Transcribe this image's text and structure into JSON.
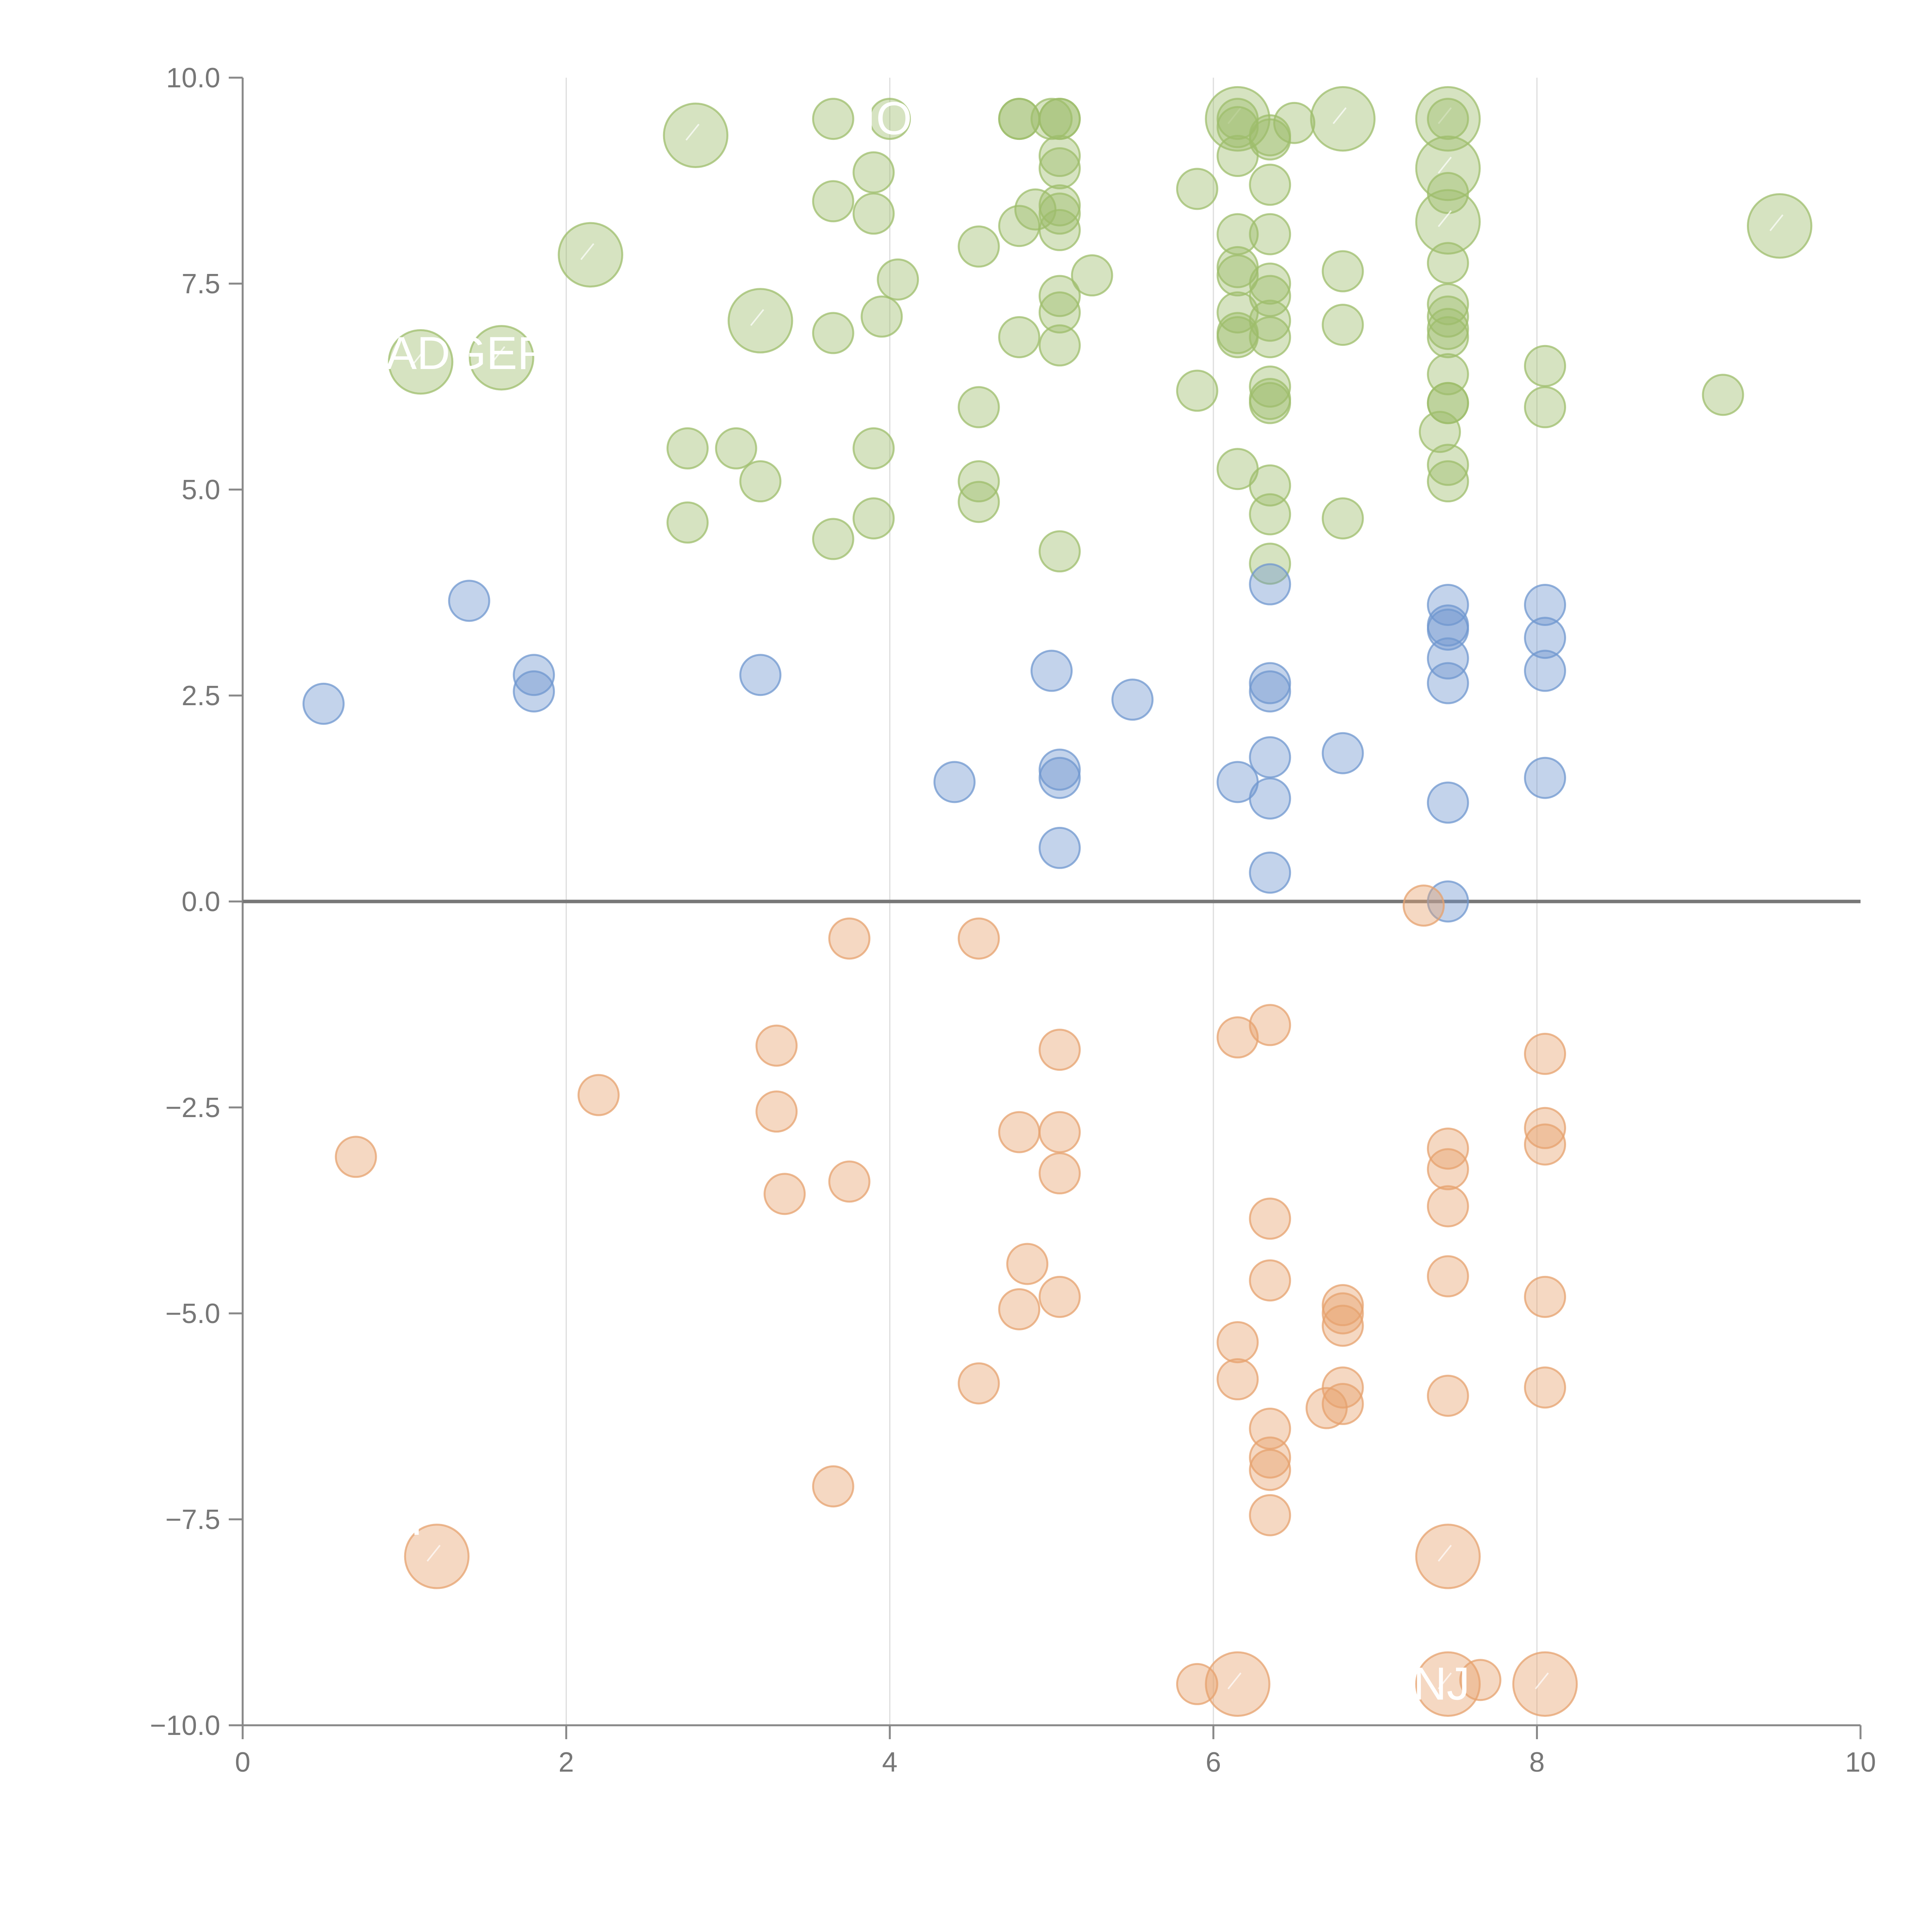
{
  "chart_data": {
    "type": "scatter",
    "title": "",
    "xlabel": "",
    "ylabel": "",
    "xlim": [
      0,
      10
    ],
    "ylim": [
      -10,
      10
    ],
    "grid": "vertical",
    "x_ticks": [
      "0",
      "2",
      "4",
      "6",
      "8",
      "10"
    ],
    "y_ticks": [
      "10.0",
      "7.5",
      "5.0",
      "2.5",
      "0.0",
      "−2.5",
      "−5.0",
      "−7.5",
      "−10.0"
    ],
    "colors": {
      "positive_high": "#9dbd6b",
      "positive_low": "#6f97cf",
      "negative": "#e6a26e",
      "axis": "#888888",
      "zero_line": "#777777",
      "grid": "#dddddd"
    },
    "labels": [
      {
        "text": "ADGER",
        "x": 1.1,
        "y": 6.65
      },
      {
        "text": "NJ",
        "x": 7.45,
        "y": -9.5
      },
      {
        "text": "IO",
        "x": 4.05,
        "y": 9.5
      },
      {
        "text": "I",
        "x": 1.25,
        "y": -7.5
      },
      {
        "text": "I",
        "x": 7.45,
        "y": -7.5
      }
    ],
    "series": [
      {
        "name": "green",
        "color": "#9dbd6b",
        "points": [
          [
            3.65,
            9.5,
            1
          ],
          [
            4.0,
            9.5,
            1
          ],
          [
            4.8,
            9.5,
            1
          ],
          [
            4.8,
            9.5,
            1
          ],
          [
            5.05,
            9.5,
            1
          ],
          [
            5.05,
            9.5,
            1
          ],
          [
            5.0,
            9.5,
            1
          ],
          [
            6.15,
            9.5,
            2.5
          ],
          [
            6.15,
            9.5,
            1
          ],
          [
            6.15,
            9.4,
            1
          ],
          [
            6.5,
            9.45,
            1
          ],
          [
            6.8,
            9.5,
            2.5
          ],
          [
            7.45,
            9.5,
            2.5
          ],
          [
            7.45,
            9.5,
            1
          ],
          [
            2.8,
            9.3,
            2.5
          ],
          [
            6.35,
            9.3,
            1
          ],
          [
            6.35,
            9.25,
            1
          ],
          [
            3.9,
            8.85,
            1
          ],
          [
            5.05,
            9.05,
            1
          ],
          [
            5.05,
            8.9,
            1
          ],
          [
            7.45,
            8.9,
            2.5
          ],
          [
            6.15,
            9.05,
            1
          ],
          [
            5.9,
            8.65,
            1
          ],
          [
            6.35,
            8.7,
            1
          ],
          [
            3.65,
            8.5,
            1
          ],
          [
            3.9,
            8.35,
            1
          ],
          [
            4.9,
            8.4,
            1
          ],
          [
            5.05,
            8.45,
            1
          ],
          [
            5.05,
            8.35,
            1
          ],
          [
            7.45,
            8.6,
            1
          ],
          [
            4.8,
            8.2,
            1
          ],
          [
            5.05,
            8.15,
            1
          ],
          [
            6.15,
            8.1,
            1
          ],
          [
            6.35,
            8.1,
            1
          ],
          [
            7.45,
            8.25,
            2.5
          ],
          [
            9.5,
            8.2,
            2.5
          ],
          [
            2.15,
            7.85,
            2.5
          ],
          [
            4.55,
            7.95,
            1
          ],
          [
            6.15,
            7.7,
            1
          ],
          [
            6.15,
            7.6,
            1
          ],
          [
            7.45,
            7.75,
            1
          ],
          [
            4.05,
            7.55,
            1
          ],
          [
            5.25,
            7.6,
            1
          ],
          [
            6.8,
            7.65,
            1
          ],
          [
            6.35,
            7.5,
            1
          ],
          [
            5.05,
            7.35,
            1
          ],
          [
            5.05,
            7.15,
            1
          ],
          [
            6.35,
            7.35,
            1
          ],
          [
            7.45,
            7.25,
            1
          ],
          [
            3.95,
            7.1,
            1
          ],
          [
            3.2,
            7.05,
            2.5
          ],
          [
            6.15,
            7.15,
            1
          ],
          [
            6.35,
            7.05,
            1
          ],
          [
            7.45,
            7.1,
            1
          ],
          [
            7.45,
            6.95,
            1
          ],
          [
            6.8,
            7.0,
            1
          ],
          [
            6.15,
            6.9,
            1
          ],
          [
            6.15,
            6.85,
            1
          ],
          [
            6.35,
            6.85,
            1
          ],
          [
            7.45,
            6.85,
            1
          ],
          [
            3.65,
            6.9,
            1
          ],
          [
            4.8,
            6.85,
            1
          ],
          [
            5.05,
            6.75,
            1
          ],
          [
            1.1,
            6.55,
            2.5
          ],
          [
            1.6,
            6.6,
            2.5
          ],
          [
            7.45,
            6.4,
            1
          ],
          [
            8.05,
            6.5,
            1
          ],
          [
            5.9,
            6.2,
            1
          ],
          [
            6.35,
            6.25,
            1
          ],
          [
            6.35,
            6.05,
            1
          ],
          [
            6.35,
            6.1,
            1
          ],
          [
            7.45,
            6.05,
            1
          ],
          [
            7.45,
            6.05,
            1
          ],
          [
            4.55,
            6.0,
            1
          ],
          [
            8.05,
            6.0,
            1
          ],
          [
            9.15,
            6.15,
            1
          ],
          [
            7.4,
            5.7,
            1
          ],
          [
            2.75,
            5.5,
            1
          ],
          [
            3.05,
            5.5,
            1
          ],
          [
            3.9,
            5.5,
            1
          ],
          [
            7.45,
            5.3,
            1
          ],
          [
            6.15,
            5.25,
            1
          ],
          [
            3.2,
            5.1,
            1
          ],
          [
            4.55,
            5.1,
            1
          ],
          [
            6.35,
            5.05,
            1
          ],
          [
            7.45,
            5.1,
            1
          ],
          [
            4.55,
            4.85,
            1
          ],
          [
            6.35,
            4.7,
            1
          ],
          [
            6.8,
            4.65,
            1
          ],
          [
            2.75,
            4.6,
            1
          ],
          [
            3.9,
            4.65,
            1
          ],
          [
            3.65,
            4.4,
            1
          ],
          [
            5.05,
            4.25,
            1
          ],
          [
            6.35,
            4.1,
            1
          ]
        ]
      },
      {
        "name": "blue",
        "color": "#6f97cf",
        "points": [
          [
            6.35,
            3.85,
            1
          ],
          [
            1.4,
            3.65,
            1
          ],
          [
            7.45,
            3.6,
            1
          ],
          [
            8.05,
            3.6,
            1
          ],
          [
            7.45,
            3.35,
            1
          ],
          [
            7.45,
            3.3,
            1
          ],
          [
            8.05,
            3.2,
            1
          ],
          [
            7.45,
            2.95,
            1
          ],
          [
            5.0,
            2.8,
            1
          ],
          [
            8.05,
            2.8,
            1
          ],
          [
            1.8,
            2.75,
            1
          ],
          [
            3.2,
            2.75,
            1
          ],
          [
            6.35,
            2.65,
            1
          ],
          [
            6.35,
            2.55,
            1
          ],
          [
            7.45,
            2.65,
            1
          ],
          [
            1.8,
            2.55,
            1
          ],
          [
            5.5,
            2.45,
            1
          ],
          [
            0.5,
            2.4,
            1
          ],
          [
            6.8,
            1.8,
            1
          ],
          [
            6.35,
            1.75,
            1
          ],
          [
            5.05,
            1.6,
            1
          ],
          [
            5.05,
            1.5,
            1
          ],
          [
            8.05,
            1.5,
            1
          ],
          [
            4.4,
            1.45,
            1
          ],
          [
            6.15,
            1.45,
            1
          ],
          [
            6.35,
            1.25,
            1
          ],
          [
            7.45,
            1.2,
            1
          ],
          [
            5.05,
            0.65,
            1
          ],
          [
            6.35,
            0.35,
            1
          ],
          [
            7.45,
            0.0,
            1
          ]
        ]
      },
      {
        "name": "orange",
        "color": "#e6a26e",
        "points": [
          [
            7.3,
            -0.05,
            1
          ],
          [
            3.75,
            -0.45,
            1
          ],
          [
            4.55,
            -0.45,
            1
          ],
          [
            6.35,
            -1.5,
            1
          ],
          [
            6.15,
            -1.65,
            1
          ],
          [
            3.3,
            -1.75,
            1
          ],
          [
            5.05,
            -1.8,
            1
          ],
          [
            8.05,
            -1.85,
            1
          ],
          [
            2.2,
            -2.35,
            1
          ],
          [
            3.3,
            -2.55,
            1
          ],
          [
            4.8,
            -2.8,
            1
          ],
          [
            5.05,
            -2.8,
            1
          ],
          [
            8.05,
            -2.75,
            1
          ],
          [
            8.05,
            -2.95,
            1
          ],
          [
            7.45,
            -3.0,
            1
          ],
          [
            0.7,
            -3.1,
            1
          ],
          [
            7.45,
            -3.25,
            1
          ],
          [
            5.05,
            -3.3,
            1
          ],
          [
            3.75,
            -3.4,
            1
          ],
          [
            3.35,
            -3.55,
            1
          ],
          [
            7.45,
            -3.7,
            1
          ],
          [
            6.35,
            -3.85,
            1
          ],
          [
            4.85,
            -4.4,
            1
          ],
          [
            7.45,
            -4.55,
            1
          ],
          [
            6.35,
            -4.6,
            1
          ],
          [
            5.05,
            -4.8,
            1
          ],
          [
            8.05,
            -4.8,
            1
          ],
          [
            4.8,
            -4.95,
            1
          ],
          [
            6.8,
            -4.9,
            1
          ],
          [
            6.8,
            -5.0,
            1
          ],
          [
            6.8,
            -5.15,
            1
          ],
          [
            6.15,
            -5.35,
            1
          ],
          [
            6.15,
            -5.8,
            1
          ],
          [
            4.55,
            -5.85,
            1
          ],
          [
            6.8,
            -5.9,
            1
          ],
          [
            8.05,
            -5.9,
            1
          ],
          [
            7.45,
            -6.0,
            1
          ],
          [
            6.8,
            -6.1,
            1
          ],
          [
            6.7,
            -6.15,
            1
          ],
          [
            6.35,
            -6.4,
            1
          ],
          [
            6.35,
            -6.75,
            1
          ],
          [
            6.35,
            -6.9,
            1
          ],
          [
            3.65,
            -7.1,
            1
          ],
          [
            6.35,
            -7.45,
            1
          ],
          [
            1.2,
            -7.95,
            2.5
          ],
          [
            7.45,
            -7.95,
            2.5
          ],
          [
            5.9,
            -9.5,
            1
          ],
          [
            6.15,
            -9.5,
            2.5
          ],
          [
            7.45,
            -9.5,
            2.5
          ],
          [
            7.65,
            -9.45,
            1
          ],
          [
            8.05,
            -9.5,
            2.5
          ]
        ]
      }
    ]
  }
}
